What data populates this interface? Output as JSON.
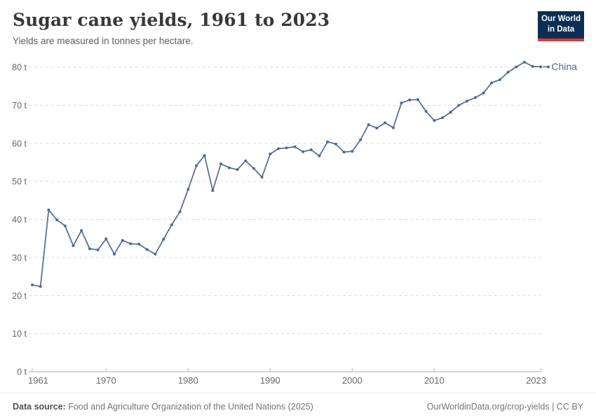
{
  "header": {
    "title": "Sugar cane yields, 1961 to 2023",
    "subtitle": "Yields are measured in tonnes per hectare."
  },
  "logo": {
    "line1": "Our World",
    "line2": "in Data",
    "bg_color": "#0d2e54",
    "accent_color": "#dc3932"
  },
  "chart_data": {
    "type": "line",
    "title": "Sugar cane yields, 1961 to 2023",
    "subtitle": "Yields are measured in tonnes per hectare.",
    "xlabel": "",
    "ylabel": "tonnes per hectare",
    "xlim": [
      1961,
      2023
    ],
    "ylim": [
      0,
      80
    ],
    "grid": "horizontal-dashed",
    "legend_position": "end-of-line",
    "x_ticks": [
      1961,
      1970,
      1980,
      1990,
      2000,
      2010,
      2023
    ],
    "y_ticks": [
      0,
      10,
      20,
      30,
      40,
      50,
      60,
      70,
      80
    ],
    "y_tick_suffix": " t",
    "series": [
      {
        "name": "China",
        "color": "#4c6a9d",
        "x": [
          1961,
          1962,
          1963,
          1964,
          1965,
          1966,
          1967,
          1968,
          1969,
          1970,
          1971,
          1972,
          1973,
          1974,
          1975,
          1976,
          1977,
          1978,
          1979,
          1980,
          1981,
          1982,
          1983,
          1984,
          1985,
          1986,
          1987,
          1988,
          1989,
          1990,
          1991,
          1992,
          1993,
          1994,
          1995,
          1996,
          1997,
          1998,
          1999,
          2000,
          2001,
          2002,
          2003,
          2004,
          2005,
          2006,
          2007,
          2008,
          2009,
          2010,
          2011,
          2012,
          2013,
          2014,
          2015,
          2016,
          2017,
          2018,
          2019,
          2020,
          2021,
          2022,
          2023
        ],
        "values": [
          22.8,
          22.4,
          42.5,
          39.9,
          38.3,
          33.1,
          37.1,
          32.3,
          32.0,
          34.9,
          30.9,
          34.5,
          33.6,
          33.5,
          32.1,
          30.9,
          34.8,
          38.6,
          42.0,
          47.9,
          54.1,
          56.8,
          47.6,
          54.6,
          53.6,
          53.1,
          55.4,
          53.4,
          51.1,
          57.2,
          58.6,
          58.8,
          59.1,
          57.8,
          58.3,
          56.7,
          60.4,
          59.8,
          57.7,
          57.9,
          60.9,
          64.9,
          64.0,
          65.4,
          64.1,
          70.6,
          71.4,
          71.5,
          68.4,
          66.0,
          66.7,
          68.2,
          70.0,
          71.1,
          72.0,
          73.2,
          75.9,
          76.7,
          78.7,
          80.1,
          81.3,
          80.2,
          80.1
        ]
      }
    ],
    "colors": {
      "gridline": "#d9d9d9",
      "axis": "#a8a8a8",
      "tick": "#b5b5b5",
      "tick_label": "#686868"
    }
  },
  "footer": {
    "source_label": "Data source:",
    "source_text": "Food and Agriculture Organization of the United Nations (2025)",
    "attribution": "OurWorldinData.org/crop-yields | CC BY"
  }
}
